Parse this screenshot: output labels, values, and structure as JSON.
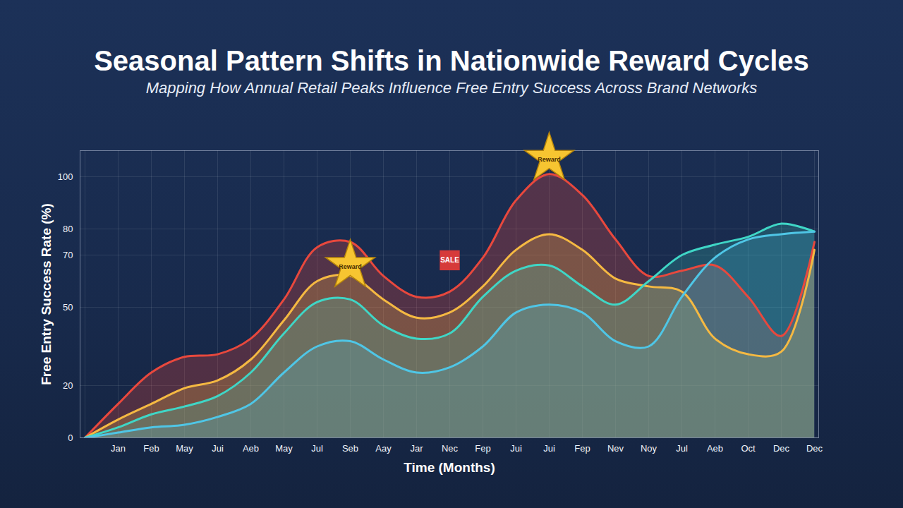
{
  "chart_data": {
    "type": "area",
    "title": "Seasonal Pattern Shifts in Nationwide Reward Cycles",
    "subtitle": "Mapping How Annual Retail Peaks Influence Free Entry Success Across Brand Networks",
    "x_label": "Time (Months)",
    "y_label": "Free Entry Success Rate (%)",
    "categories": [
      null,
      "Jan",
      "Feb",
      "May",
      "Jui",
      "Aeb",
      "May",
      "Jul",
      "Seb",
      "Aay",
      "Jar",
      "Nec",
      "Fep",
      "Jui",
      "Jui",
      "Fep",
      "Nev",
      "Noy",
      "Jul",
      "Aeb",
      "Oct",
      "Dec",
      "Dec"
    ],
    "ylim": [
      0,
      110
    ],
    "yticks": [
      0,
      20,
      50,
      70,
      80,
      100
    ],
    "grid": true,
    "series": [
      {
        "color": "#e8483d",
        "values": [
          0,
          13,
          25,
          31,
          32,
          38,
          53,
          73,
          75,
          62,
          54,
          56,
          69,
          91,
          101,
          93,
          76,
          62,
          64,
          66,
          54,
          39,
          75
        ]
      },
      {
        "color": "#f5b942",
        "values": [
          0,
          7,
          13,
          19,
          22,
          30,
          45,
          60,
          62,
          53,
          46,
          48,
          58,
          72,
          78,
          72,
          61,
          58,
          56,
          38,
          32,
          33,
          72
        ]
      },
      {
        "color": "#3fd6c6",
        "values": [
          0,
          4,
          9,
          12,
          16,
          25,
          40,
          52,
          53,
          43,
          38,
          40,
          54,
          64,
          66,
          58,
          51,
          60,
          70,
          74,
          77,
          82,
          79
        ]
      },
      {
        "color": "#4fc6e6",
        "values": [
          0,
          2,
          4,
          5,
          8,
          13,
          25,
          35,
          37,
          30,
          25,
          27,
          35,
          48,
          51,
          48,
          37,
          35,
          54,
          69,
          76,
          78,
          79
        ]
      }
    ],
    "annotations": [
      {
        "text": "Reward",
        "x": 8,
        "y": 66
      },
      {
        "text": "Reward",
        "x": 14,
        "y": 107
      },
      {
        "text": "SALE",
        "x": 11,
        "y": 68
      }
    ]
  }
}
